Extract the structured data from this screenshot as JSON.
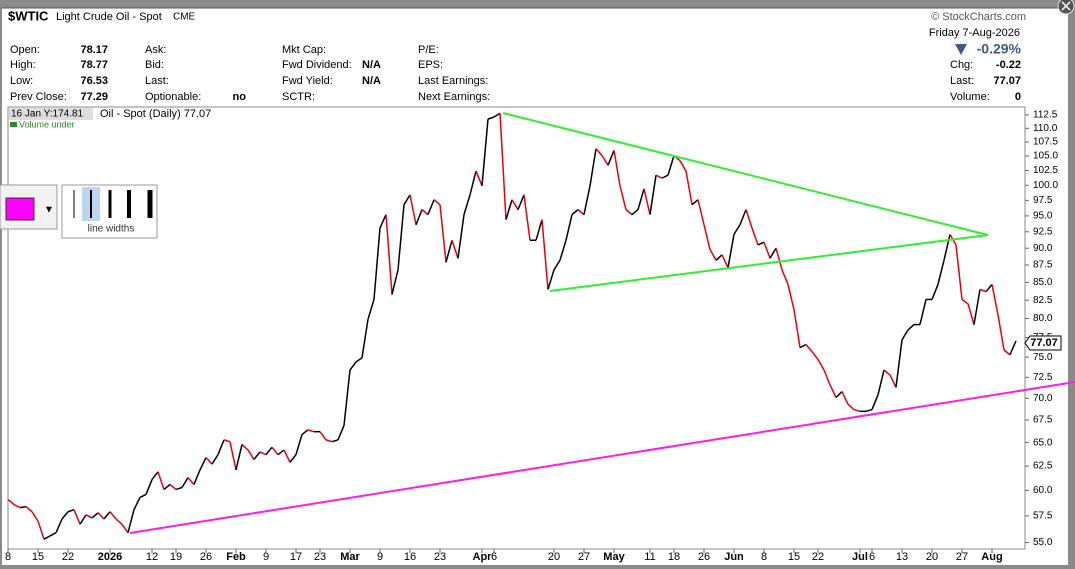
{
  "header": {
    "symbol": "$WTIC",
    "name": "Light Crude Oil - Spot",
    "exchange": "CME",
    "source": "© StockCharts.com",
    "date": "Friday  7-Aug-2026",
    "columns": [
      [
        [
          "Open:",
          "78.17"
        ],
        [
          "High:",
          "78.77"
        ],
        [
          "Low:",
          "76.53"
        ],
        [
          "Prev Close:",
          "77.29"
        ]
      ],
      [
        [
          "Ask:",
          ""
        ],
        [
          "Bid:",
          ""
        ],
        [
          "Last:",
          ""
        ],
        [
          "Optionable:",
          "no"
        ]
      ],
      [
        [
          "Mkt Cap:",
          ""
        ],
        [
          "Fwd Dividend:",
          "N/A"
        ],
        [
          "Fwd Yield:",
          "N/A"
        ],
        [
          "SCTR:",
          ""
        ]
      ],
      [
        [
          "P/E:",
          ""
        ],
        [
          "EPS:",
          ""
        ],
        [
          "Last Earnings:",
          ""
        ],
        [
          "Next Earnings:",
          ""
        ]
      ]
    ],
    "change_pct": "-0.29%",
    "right": [
      [
        "Chg:",
        "-0.22"
      ],
      [
        "Last:",
        "77.07"
      ],
      [
        "Volume:",
        "0"
      ]
    ]
  },
  "tools": {
    "line_widths": "line widths"
  },
  "chart_data": {
    "type": "line",
    "cursor_readout": "16 Jan Y:174.81",
    "series_label": "Oil - Spot (Daily) 77.07",
    "volume_label": "Volume under",
    "up_color": "#000000",
    "down_color": "#e8000b",
    "log_scale": true,
    "ylim": [
      54.4,
      113.8
    ],
    "yticks": [
      {
        "value": 55,
        "label": "55.0"
      },
      57.5,
      {
        "value": 60,
        "label": "60.0"
      },
      62.5,
      {
        "value": 65,
        "label": "65.0"
      },
      67.5,
      {
        "value": 70,
        "label": "70.0"
      },
      72.5,
      {
        "value": 75,
        "label": "75.0"
      },
      77.5,
      {
        "value": 80,
        "label": "80.0"
      },
      82.5,
      {
        "value": 85,
        "label": "85.0"
      },
      87.5,
      {
        "value": 90,
        "label": "90.0"
      },
      92.5,
      {
        "value": 95,
        "label": "95.0"
      },
      97.5,
      {
        "value": 100,
        "label": "100.0"
      },
      102.5,
      {
        "value": 105,
        "label": "105.0"
      },
      107.5,
      {
        "value": 110,
        "label": "110.0"
      },
      112.5
    ],
    "xlim": [
      0,
      169.5
    ],
    "xticks": [
      {
        "value": 0,
        "label": "8"
      },
      {
        "value": 5,
        "label": "15"
      },
      {
        "value": 10,
        "label": "22"
      },
      {
        "value": 17,
        "label": "2026"
      },
      {
        "value": 24,
        "label": "12"
      },
      {
        "value": 28,
        "label": "19"
      },
      {
        "value": 33,
        "label": "26"
      },
      {
        "value": 38,
        "label": "Feb"
      },
      {
        "value": 43,
        "label": "9"
      },
      {
        "value": 48,
        "label": "17"
      },
      {
        "value": 52,
        "label": "23"
      },
      {
        "value": 57,
        "label": "Mar"
      },
      {
        "value": 62,
        "label": "9"
      },
      {
        "value": 67,
        "label": "16"
      },
      {
        "value": 72,
        "label": "23"
      },
      {
        "value": 79,
        "label": "Apr"
      },
      {
        "value": 81,
        "label": "6"
      },
      {
        "value": 91,
        "label": "20"
      },
      {
        "value": 96,
        "label": "27"
      },
      {
        "value": 101,
        "label": "May"
      },
      {
        "value": 107,
        "label": "11"
      },
      {
        "value": 111,
        "label": "18"
      },
      {
        "value": 116,
        "label": "26"
      },
      {
        "value": 121,
        "label": "Jun"
      },
      {
        "value": 126,
        "label": "8"
      },
      {
        "value": 131,
        "label": "15"
      },
      {
        "value": 135,
        "label": "22"
      },
      {
        "value": 142,
        "label": "Jul"
      },
      {
        "value": 144,
        "label": "6"
      },
      {
        "value": 149,
        "label": "13"
      },
      {
        "value": 154,
        "label": "20"
      },
      {
        "value": 159,
        "label": "27"
      },
      {
        "value": 164,
        "label": "Aug"
      }
    ],
    "values": [
      59.1,
      58.6,
      58.3,
      58.4,
      57.9,
      57.0,
      55.3,
      55.6,
      55.9,
      57.2,
      57.9,
      58.1,
      56.7,
      57.6,
      57.3,
      57.8,
      57.2,
      57.9,
      57.2,
      56.7,
      55.9,
      58.1,
      59.3,
      59.6,
      61.1,
      61.9,
      60.1,
      60.6,
      60.1,
      60.3,
      61.3,
      60.6,
      62.1,
      63.4,
      62.7,
      63.7,
      65.3,
      65.1,
      62.1,
      64.8,
      64.2,
      63.2,
      64.0,
      63.7,
      64.5,
      63.7,
      64.2,
      62.9,
      63.7,
      65.9,
      66.4,
      66.2,
      66.2,
      65.3,
      65.1,
      65.3,
      66.9,
      73.4,
      74.4,
      74.9,
      79.9,
      82.6,
      93.1,
      95.2,
      83.3,
      86.8,
      96.8,
      98.4,
      93.6,
      96.0,
      95.2,
      97.6,
      96.8,
      87.9,
      91.2,
      88.5,
      95.2,
      98.4,
      102.4,
      99.9,
      111.7,
      112.1,
      112.8,
      94.4,
      97.6,
      96.0,
      98.4,
      91.2,
      91.2,
      94.4,
      84.0,
      86.8,
      88.2,
      91.2,
      95.2,
      96.0,
      95.2,
      99.9,
      106.3,
      105.1,
      103.4,
      106.0,
      99.9,
      96.0,
      95.2,
      96.0,
      99.4,
      95.2,
      101.7,
      101.2,
      101.7,
      105.1,
      104.2,
      102.4,
      96.8,
      97.6,
      93.6,
      89.8,
      88.2,
      89.0,
      87.1,
      92.1,
      93.6,
      96.0,
      93.1,
      90.5,
      90.9,
      88.5,
      90.0,
      86.8,
      84.7,
      81.2,
      76.2,
      76.6,
      75.7,
      74.7,
      73.4,
      71.6,
      70.1,
      70.8,
      69.3,
      68.7,
      68.5,
      68.5,
      68.7,
      70.4,
      73.4,
      72.8,
      71.3,
      77.2,
      78.5,
      79.2,
      79.2,
      82.6,
      82.6,
      84.7,
      88.2,
      92.1,
      90.5,
      82.6,
      82.0,
      79.2,
      84.0,
      83.7,
      84.7,
      80.5,
      75.9,
      75.3,
      77.07
    ]
  }
}
